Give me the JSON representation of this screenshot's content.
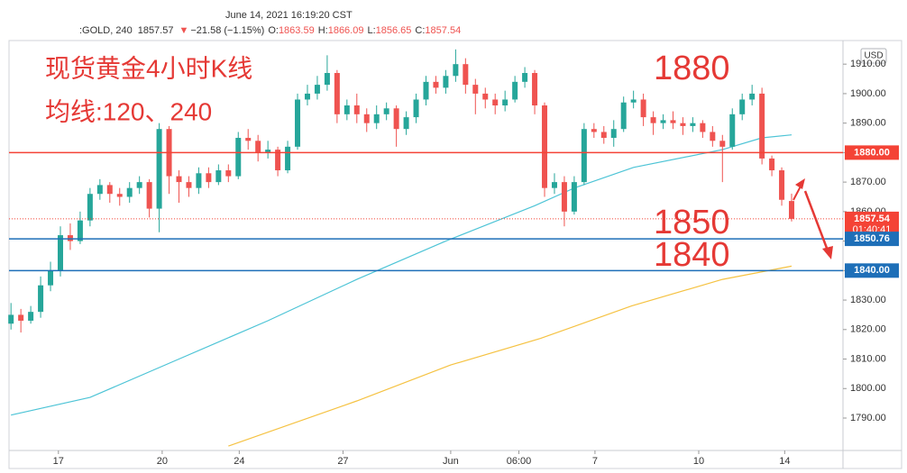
{
  "chart_data": {
    "type": "candlestick",
    "datetime": "June 14, 2021 16:19:20 CST",
    "symbol": ":GOLD, 240",
    "last": 1857.57,
    "change": "−21.58 (−1.15%)",
    "ohlc": [
      {
        "label": "O:",
        "value": 1863.59
      },
      {
        "label": "H:",
        "value": 1866.09
      },
      {
        "label": "L:",
        "value": 1856.65
      },
      {
        "label": "C:",
        "value": 1857.54
      }
    ],
    "currency": "USD",
    "annotations": [
      "现货黄金4小时K线",
      "均线:120、240",
      "1880",
      "1850",
      "1840"
    ],
    "up_color": "#26a69a",
    "down_color": "#ef5350",
    "open": [
      1822,
      1825,
      1823,
      1826,
      1835,
      1840,
      1852,
      1850,
      1857,
      1866,
      1869,
      1866,
      1865,
      1868,
      1870,
      1861,
      1888,
      1872,
      1870,
      1868,
      1873,
      1870,
      1874,
      1872,
      1885,
      1884,
      1880,
      1881,
      1874,
      1882,
      1898,
      1900,
      1903,
      1907,
      1893,
      1896,
      1893,
      1890,
      1893,
      1895,
      1888,
      1892,
      1898,
      1904,
      1902,
      1906,
      1910,
      1903,
      1900,
      1898,
      1896,
      1898,
      1904,
      1907,
      1896,
      1868,
      1870,
      1860,
      1870,
      1888,
      1887,
      1885,
      1888,
      1897,
      1898,
      1892,
      1890,
      1891,
      1890,
      1889,
      1890,
      1887,
      1884,
      1882,
      1893,
      1898,
      1900,
      1878,
      1874,
      1863.59
    ],
    "high": [
      1829,
      1827,
      1828,
      1838,
      1843,
      1855,
      1856,
      1860,
      1868,
      1871,
      1870,
      1868,
      1870,
      1872,
      1871,
      1890,
      1889,
      1874,
      1872,
      1875,
      1875,
      1876,
      1876,
      1887,
      1888,
      1886,
      1884,
      1882,
      1884,
      1900,
      1903,
      1906,
      1913,
      1908,
      1898,
      1900,
      1895,
      1896,
      1897,
      1896,
      1894,
      1900,
      1906,
      1906,
      1908,
      1915,
      1912,
      1905,
      1902,
      1900,
      1901,
      1906,
      1909,
      1908,
      1897,
      1873,
      1872,
      1872,
      1890,
      1890,
      1889,
      1891,
      1899,
      1901,
      1900,
      1894,
      1893,
      1894,
      1892,
      1892,
      1891,
      1889,
      1886,
      1895,
      1900,
      1903,
      1902,
      1879,
      1875,
      1866.09
    ],
    "low": [
      1820,
      1819,
      1822,
      1824,
      1833,
      1838,
      1847,
      1849,
      1855,
      1864,
      1863,
      1862,
      1863,
      1866,
      1858,
      1853,
      1866,
      1863,
      1865,
      1866,
      1868,
      1869,
      1870,
      1871,
      1881,
      1877,
      1878,
      1872,
      1873,
      1881,
      1896,
      1898,
      1901,
      1890,
      1891,
      1890,
      1887,
      1888,
      1891,
      1882,
      1886,
      1890,
      1896,
      1900,
      1900,
      1904,
      1900,
      1893,
      1895,
      1893,
      1894,
      1897,
      1902,
      1893,
      1865,
      1866,
      1855,
      1859,
      1869,
      1885,
      1883,
      1882,
      1887,
      1895,
      1889,
      1886,
      1888,
      1888,
      1886,
      1887,
      1885,
      1882,
      1870,
      1881,
      1891,
      1896,
      1876,
      1872,
      1862,
      1856.65
    ],
    "close": [
      1825,
      1823,
      1826,
      1835,
      1840,
      1852,
      1850,
      1857,
      1866,
      1869,
      1866,
      1865,
      1868,
      1870,
      1861,
      1888,
      1872,
      1870,
      1868,
      1873,
      1870,
      1874,
      1872,
      1885,
      1884,
      1880,
      1881,
      1874,
      1882,
      1898,
      1900,
      1903,
      1907,
      1893,
      1896,
      1893,
      1890,
      1893,
      1895,
      1888,
      1892,
      1898,
      1904,
      1902,
      1906,
      1910,
      1903,
      1900,
      1898,
      1896,
      1898,
      1904,
      1907,
      1896,
      1868,
      1870,
      1860,
      1870,
      1888,
      1887,
      1885,
      1888,
      1897,
      1898,
      1892,
      1890,
      1891,
      1890,
      1889,
      1890,
      1887,
      1884,
      1882,
      1893,
      1898,
      1900,
      1878,
      1874,
      1864,
      1857.54
    ],
    "lines": [
      {
        "color": "#4dc4d6",
        "x": [
          0,
          8,
          17,
          26,
          35,
          44,
          53,
          57,
          63,
          72,
          76,
          79
        ],
        "values": [
          1791,
          1797,
          1810,
          1823,
          1837,
          1850,
          1862,
          1868,
          1875,
          1881,
          1885,
          1886
        ]
      },
      {
        "color": "#f5c242",
        "x": [
          22,
          35,
          44.5,
          53.6,
          62.8,
          72,
          79
        ],
        "values": [
          1780.5,
          1795.8,
          1808,
          1817,
          1828,
          1837,
          1841.5
        ]
      }
    ],
    "levels": [
      {
        "value": 1880,
        "label": "1880.00",
        "color": "#f44336"
      },
      {
        "value": 1857.54,
        "label": "1857.54",
        "sub": "01:40:41",
        "color": "#f44336",
        "dotted": true
      },
      {
        "value": 1850.76,
        "label": "1850.76",
        "color": "#1e6fb8"
      },
      {
        "value": 1840,
        "label": "1840.00",
        "color": "#1e6fb8"
      }
    ],
    "xlim": [
      -0.2,
      84.2
    ],
    "xticks": [
      {
        "value": 4.8,
        "label": "17"
      },
      {
        "value": 15.3,
        "label": "20"
      },
      {
        "value": 23.1,
        "label": "24"
      },
      {
        "value": 33.6,
        "label": "27"
      },
      {
        "value": 44.5,
        "label": "Jun"
      },
      {
        "value": 51.4,
        "label": "06:00"
      },
      {
        "value": 59.1,
        "label": "7"
      },
      {
        "value": 69.6,
        "label": "10"
      },
      {
        "value": 78.3,
        "label": "14"
      }
    ],
    "ylim": [
      1779,
      1918
    ],
    "yticks": [
      {
        "value": 1790,
        "label": "1790.00"
      },
      {
        "value": 1800,
        "label": "1800.00"
      },
      {
        "value": 1810,
        "label": "1810.00"
      },
      {
        "value": 1820,
        "label": "1820.00"
      },
      {
        "value": 1830,
        "label": "1830.00"
      },
      {
        "value": 1840,
        "label": "1840.00"
      },
      {
        "value": 1850,
        "label": "1850.00"
      },
      {
        "value": 1860,
        "label": "1860.00"
      },
      {
        "value": 1870,
        "label": "1870.00"
      },
      {
        "value": 1880,
        "label": "1880.00"
      },
      {
        "value": 1890,
        "label": "1890.00"
      },
      {
        "value": 1900,
        "label": "1900.00"
      },
      {
        "value": 1910,
        "label": "1910.00"
      }
    ]
  }
}
